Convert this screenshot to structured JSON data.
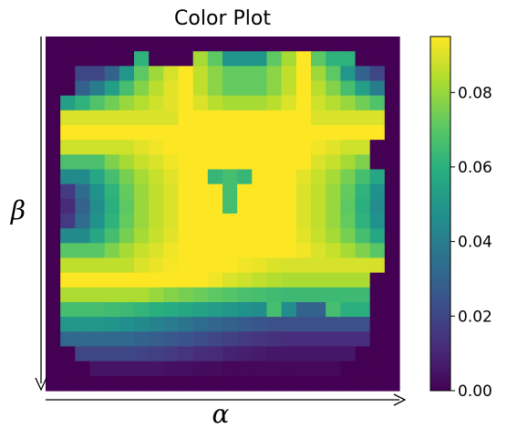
{
  "chart_data": {
    "type": "heatmap",
    "title": "Color Plot",
    "xlabel": "α",
    "ylabel": "β",
    "colormap": "viridis",
    "colorbar": {
      "range": [
        0,
        0.095
      ],
      "ticks": [
        0.0,
        0.02,
        0.04,
        0.06,
        0.08
      ],
      "tick_labels": [
        "0.00",
        "0.02",
        "0.04",
        "0.06",
        "0.08"
      ]
    },
    "rows": 24,
    "cols": 24,
    "values": [
      [
        0.0,
        0.0,
        0.0,
        0.0,
        0.0,
        0.0,
        0.0,
        0.0,
        0.0,
        0.0,
        0.0,
        0.0,
        0.0,
        0.0,
        0.0,
        0.0,
        0.0,
        0.0,
        0.0,
        0.0,
        0.0,
        0.0,
        0.0,
        0.0
      ],
      [
        0.0,
        0.0,
        0.0,
        0.0,
        0.0,
        0.0,
        0.061,
        0.0,
        0.0,
        0.0,
        0.082,
        0.071,
        0.049,
        0.049,
        0.049,
        0.071,
        0.082,
        0.095,
        0.071,
        0.061,
        0.061,
        0.0,
        0.0,
        0.0
      ],
      [
        0.0,
        0.0,
        0.02,
        0.02,
        0.03,
        0.05,
        0.071,
        0.081,
        0.089,
        0.095,
        0.086,
        0.078,
        0.072,
        0.072,
        0.072,
        0.078,
        0.086,
        0.095,
        0.081,
        0.071,
        0.05,
        0.03,
        0.02,
        0.0
      ],
      [
        0.0,
        0.0,
        0.029,
        0.04,
        0.053,
        0.066,
        0.077,
        0.085,
        0.091,
        0.095,
        0.086,
        0.078,
        0.072,
        0.072,
        0.072,
        0.078,
        0.086,
        0.095,
        0.085,
        0.077,
        0.066,
        0.053,
        0.04,
        0.0
      ],
      [
        0.0,
        0.053,
        0.061,
        0.068,
        0.074,
        0.08,
        0.084,
        0.088,
        0.091,
        0.095,
        0.09,
        0.085,
        0.082,
        0.082,
        0.082,
        0.085,
        0.09,
        0.095,
        0.088,
        0.084,
        0.08,
        0.074,
        0.068,
        0.0
      ],
      [
        0.0,
        0.09,
        0.09,
        0.09,
        0.09,
        0.09,
        0.09,
        0.09,
        0.09,
        0.095,
        0.095,
        0.095,
        0.095,
        0.095,
        0.095,
        0.095,
        0.095,
        0.095,
        0.09,
        0.09,
        0.09,
        0.09,
        0.09,
        0.0
      ],
      [
        0.0,
        0.095,
        0.095,
        0.095,
        0.095,
        0.095,
        0.095,
        0.095,
        0.095,
        0.095,
        0.095,
        0.095,
        0.095,
        0.095,
        0.095,
        0.095,
        0.095,
        0.095,
        0.095,
        0.095,
        0.095,
        0.095,
        0.095,
        0.0
      ],
      [
        0.0,
        0.088,
        0.088,
        0.088,
        0.088,
        0.088,
        0.091,
        0.093,
        0.095,
        0.095,
        0.095,
        0.095,
        0.095,
        0.095,
        0.095,
        0.095,
        0.095,
        0.095,
        0.093,
        0.091,
        0.088,
        0.088,
        0.0,
        0.0
      ],
      [
        0.0,
        0.067,
        0.067,
        0.067,
        0.076,
        0.082,
        0.087,
        0.09,
        0.093,
        0.095,
        0.095,
        0.095,
        0.095,
        0.095,
        0.095,
        0.095,
        0.095,
        0.095,
        0.09,
        0.087,
        0.082,
        0.076,
        0.0,
        0.0
      ],
      [
        0.0,
        0.045,
        0.045,
        0.056,
        0.066,
        0.075,
        0.082,
        0.087,
        0.091,
        0.095,
        0.095,
        0.063,
        0.066,
        0.063,
        0.095,
        0.095,
        0.095,
        0.091,
        0.087,
        0.082,
        0.075,
        0.066,
        0.056,
        0.0
      ],
      [
        0.0,
        0.016,
        0.033,
        0.048,
        0.061,
        0.072,
        0.08,
        0.086,
        0.09,
        0.095,
        0.095,
        0.095,
        0.066,
        0.095,
        0.095,
        0.095,
        0.095,
        0.09,
        0.086,
        0.08,
        0.072,
        0.061,
        0.048,
        0.0
      ],
      [
        0.0,
        0.011,
        0.03,
        0.046,
        0.06,
        0.071,
        0.08,
        0.086,
        0.09,
        0.095,
        0.095,
        0.095,
        0.066,
        0.095,
        0.095,
        0.095,
        0.095,
        0.09,
        0.086,
        0.08,
        0.071,
        0.06,
        0.046,
        0.0
      ],
      [
        0.0,
        0.016,
        0.033,
        0.048,
        0.061,
        0.072,
        0.08,
        0.086,
        0.09,
        0.095,
        0.095,
        0.095,
        0.095,
        0.095,
        0.095,
        0.095,
        0.095,
        0.09,
        0.086,
        0.08,
        0.072,
        0.061,
        0.048,
        0.0
      ],
      [
        0.0,
        0.045,
        0.045,
        0.056,
        0.066,
        0.075,
        0.082,
        0.087,
        0.091,
        0.095,
        0.095,
        0.095,
        0.095,
        0.095,
        0.095,
        0.095,
        0.095,
        0.091,
        0.087,
        0.082,
        0.075,
        0.066,
        0.056,
        0.0
      ],
      [
        0.0,
        0.07,
        0.07,
        0.07,
        0.076,
        0.082,
        0.087,
        0.09,
        0.093,
        0.095,
        0.095,
        0.095,
        0.095,
        0.095,
        0.095,
        0.095,
        0.095,
        0.093,
        0.09,
        0.087,
        0.082,
        0.076,
        0.07,
        0.0
      ],
      [
        0.0,
        0.086,
        0.086,
        0.086,
        0.086,
        0.086,
        0.09,
        0.092,
        0.094,
        0.095,
        0.095,
        0.095,
        0.095,
        0.093,
        0.092,
        0.09,
        0.089,
        0.089,
        0.089,
        0.089,
        0.089,
        0.089,
        0.089,
        0.0
      ],
      [
        0.0,
        0.095,
        0.095,
        0.095,
        0.095,
        0.095,
        0.095,
        0.095,
        0.095,
        0.095,
        0.095,
        0.093,
        0.09,
        0.088,
        0.086,
        0.084,
        0.083,
        0.083,
        0.083,
        0.083,
        0.083,
        0.083,
        0.0,
        0.0
      ],
      [
        0.0,
        0.083,
        0.083,
        0.083,
        0.083,
        0.083,
        0.083,
        0.08,
        0.077,
        0.075,
        0.073,
        0.071,
        0.069,
        0.067,
        0.066,
        0.065,
        0.064,
        0.064,
        0.064,
        0.064,
        0.064,
        0.064,
        0.0,
        0.0
      ],
      [
        0.0,
        0.066,
        0.066,
        0.066,
        0.065,
        0.064,
        0.062,
        0.06,
        0.058,
        0.056,
        0.054,
        0.052,
        0.05,
        0.048,
        0.046,
        0.066,
        0.046,
        0.03,
        0.03,
        0.066,
        0.06,
        0.06,
        0.0,
        0.0
      ],
      [
        0.0,
        0.05,
        0.05,
        0.05,
        0.049,
        0.047,
        0.045,
        0.042,
        0.039,
        0.036,
        0.033,
        0.031,
        0.029,
        0.027,
        0.025,
        0.023,
        0.023,
        0.023,
        0.023,
        0.023,
        0.023,
        0.023,
        0.0,
        0.0
      ],
      [
        0.0,
        0.032,
        0.032,
        0.032,
        0.032,
        0.032,
        0.03,
        0.028,
        0.026,
        0.024,
        0.022,
        0.02,
        0.018,
        0.016,
        0.014,
        0.013,
        0.012,
        0.012,
        0.012,
        0.012,
        0.012,
        0.012,
        0.0,
        0.0
      ],
      [
        0.0,
        0.0,
        0.02,
        0.02,
        0.02,
        0.02,
        0.019,
        0.018,
        0.016,
        0.014,
        0.012,
        0.011,
        0.009,
        0.008,
        0.007,
        0.006,
        0.006,
        0.006,
        0.006,
        0.006,
        0.006,
        0.0,
        0.0,
        0.0
      ],
      [
        0.0,
        0.0,
        0.0,
        0.005,
        0.005,
        0.005,
        0.005,
        0.005,
        0.004,
        0.004,
        0.003,
        0.003,
        0.002,
        0.002,
        0.002,
        0.002,
        0.002,
        0.002,
        0.002,
        0.002,
        0.0,
        0.0,
        0.0,
        0.0
      ],
      [
        0.0,
        0.0,
        0.0,
        0.0,
        0.0,
        0.0,
        0.0,
        0.0,
        0.0,
        0.0,
        0.0,
        0.0,
        0.0,
        0.0,
        0.0,
        0.0,
        0.0,
        0.0,
        0.0,
        0.0,
        0.0,
        0.0,
        0.0,
        0.0
      ]
    ]
  }
}
